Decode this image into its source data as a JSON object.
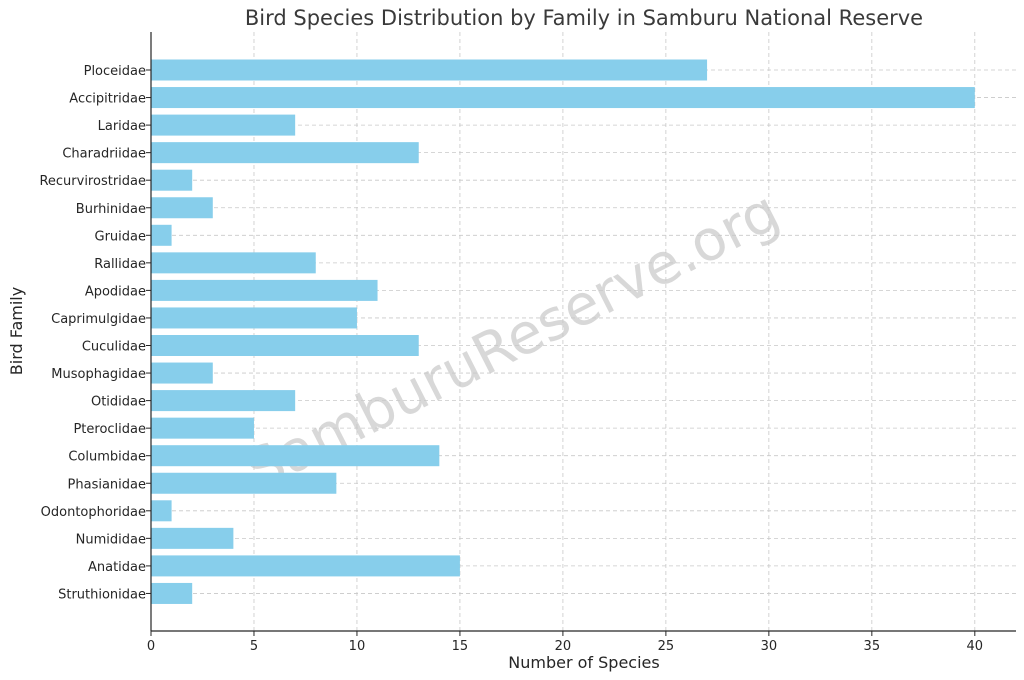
{
  "chart_data": {
    "type": "bar",
    "orientation": "horizontal",
    "title": "Bird Species Distribution by Family in Samburu National Reserve",
    "xlabel": "Number of Species",
    "ylabel": "Bird Family",
    "xlim": [
      0,
      42
    ],
    "xticks": [
      0,
      5,
      10,
      15,
      20,
      25,
      30,
      35,
      40
    ],
    "grid": true,
    "bar_color": "#87ceeb",
    "watermark": "SamburuReserve.org",
    "categories": [
      "Ploceidae",
      "Accipitridae",
      "Laridae",
      "Charadriidae",
      "Recurvirostridae",
      "Burhinidae",
      "Gruidae",
      "Rallidae",
      "Apodidae",
      "Caprimulgidae",
      "Cuculidae",
      "Musophagidae",
      "Otididae",
      "Pteroclidae",
      "Columbidae",
      "Phasianidae",
      "Odontophoridae",
      "Numididae",
      "Anatidae",
      "Struthionidae"
    ],
    "values": [
      27,
      40,
      7,
      13,
      2,
      3,
      1,
      8,
      11,
      10,
      13,
      3,
      7,
      5,
      14,
      9,
      1,
      4,
      15,
      2
    ]
  }
}
